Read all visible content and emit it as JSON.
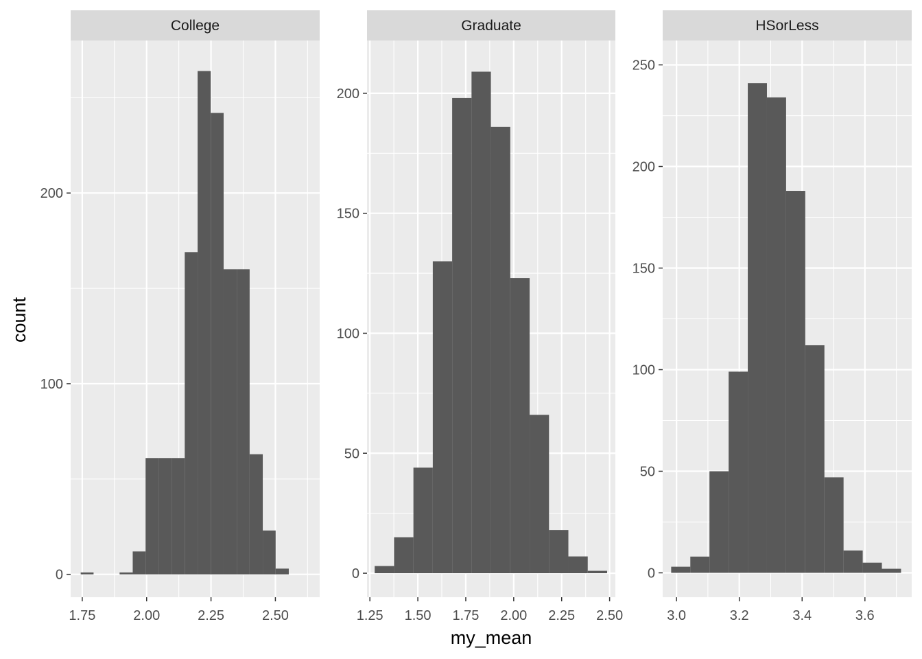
{
  "chart_data": {
    "type": "bar",
    "subtype": "histogram-facets",
    "xlabel": "my_mean",
    "ylabel": "count",
    "colors": {
      "bar": "#595959",
      "panel": "#ebebeb",
      "grid": "#ffffff",
      "strip": "#d9d9d9",
      "tick": "#333333"
    },
    "facets": [
      {
        "name": "College",
        "xlim": [
          1.705,
          2.672
        ],
        "ylim": [
          -12,
          280
        ],
        "x_ticks": [
          1.75,
          2.0,
          2.25,
          2.5
        ],
        "x_tick_labels": [
          "1.75",
          "2.00",
          "2.25",
          "2.50"
        ],
        "y_ticks": [
          0,
          100,
          200
        ],
        "y_tick_labels": [
          "0",
          "100",
          "200"
        ],
        "bins": [
          {
            "x0": 1.744,
            "x1": 1.794,
            "count": 1
          },
          {
            "x0": 1.794,
            "x1": 1.845,
            "count": 0
          },
          {
            "x0": 1.845,
            "x1": 1.895,
            "count": 0
          },
          {
            "x0": 1.895,
            "x1": 1.946,
            "count": 1
          },
          {
            "x0": 1.946,
            "x1": 1.996,
            "count": 12
          },
          {
            "x0": 1.996,
            "x1": 2.047,
            "count": 61
          },
          {
            "x0": 2.047,
            "x1": 2.097,
            "count": 61
          },
          {
            "x0": 2.097,
            "x1": 2.148,
            "count": 61
          },
          {
            "x0": 2.148,
            "x1": 2.198,
            "count": 169
          },
          {
            "x0": 2.198,
            "x1": 2.249,
            "count": 264
          },
          {
            "x0": 2.249,
            "x1": 2.299,
            "count": 242
          },
          {
            "x0": 2.299,
            "x1": 2.35,
            "count": 160
          },
          {
            "x0": 2.35,
            "x1": 2.4,
            "count": 160
          },
          {
            "x0": 2.4,
            "x1": 2.451,
            "count": 63
          },
          {
            "x0": 2.451,
            "x1": 2.501,
            "count": 23
          },
          {
            "x0": 2.501,
            "x1": 2.552,
            "count": 3
          }
        ]
      },
      {
        "name": "Graduate",
        "xlim": [
          1.235,
          2.53
        ],
        "ylim": [
          -10,
          222
        ],
        "x_ticks": [
          1.25,
          1.5,
          1.75,
          2.0,
          2.25,
          2.5
        ],
        "x_tick_labels": [
          "1.25",
          "1.50",
          "1.75",
          "2.00",
          "2.25",
          "2.50"
        ],
        "y_ticks": [
          0,
          50,
          100,
          150,
          200
        ],
        "y_tick_labels": [
          "0",
          "50",
          "100",
          "150",
          "200"
        ],
        "bins": [
          {
            "x0": 1.275,
            "x1": 1.376,
            "count": 3
          },
          {
            "x0": 1.376,
            "x1": 1.477,
            "count": 15
          },
          {
            "x0": 1.477,
            "x1": 1.578,
            "count": 44
          },
          {
            "x0": 1.578,
            "x1": 1.679,
            "count": 130
          },
          {
            "x0": 1.679,
            "x1": 1.78,
            "count": 198
          },
          {
            "x0": 1.78,
            "x1": 1.881,
            "count": 209
          },
          {
            "x0": 1.881,
            "x1": 1.982,
            "count": 186
          },
          {
            "x0": 1.982,
            "x1": 2.083,
            "count": 123
          },
          {
            "x0": 2.083,
            "x1": 2.184,
            "count": 66
          },
          {
            "x0": 2.184,
            "x1": 2.285,
            "count": 18
          },
          {
            "x0": 2.285,
            "x1": 2.386,
            "count": 7
          },
          {
            "x0": 2.386,
            "x1": 2.487,
            "count": 1
          }
        ]
      },
      {
        "name": "HSorLess",
        "xlim": [
          2.956,
          3.749
        ],
        "ylim": [
          -12,
          262
        ],
        "x_ticks": [
          3.0,
          3.2,
          3.4,
          3.6
        ],
        "x_tick_labels": [
          "3.0",
          "3.2",
          "3.4",
          "3.6"
        ],
        "y_ticks": [
          0,
          50,
          100,
          150,
          200,
          250
        ],
        "y_tick_labels": [
          "0",
          "50",
          "100",
          "150",
          "200",
          "250"
        ],
        "bins": [
          {
            "x0": 2.983,
            "x1": 3.044,
            "count": 3
          },
          {
            "x0": 3.044,
            "x1": 3.105,
            "count": 8
          },
          {
            "x0": 3.105,
            "x1": 3.166,
            "count": 50
          },
          {
            "x0": 3.166,
            "x1": 3.227,
            "count": 99
          },
          {
            "x0": 3.227,
            "x1": 3.288,
            "count": 241
          },
          {
            "x0": 3.288,
            "x1": 3.349,
            "count": 234
          },
          {
            "x0": 3.349,
            "x1": 3.41,
            "count": 188
          },
          {
            "x0": 3.41,
            "x1": 3.471,
            "count": 112
          },
          {
            "x0": 3.471,
            "x1": 3.532,
            "count": 47
          },
          {
            "x0": 3.532,
            "x1": 3.593,
            "count": 11
          },
          {
            "x0": 3.593,
            "x1": 3.654,
            "count": 5
          },
          {
            "x0": 3.654,
            "x1": 3.715,
            "count": 2
          }
        ]
      }
    ]
  }
}
